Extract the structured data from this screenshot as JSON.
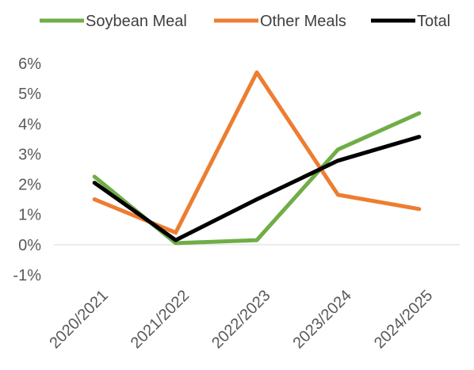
{
  "chart_data": {
    "type": "line",
    "categories": [
      "2020/2021",
      "2021/2022",
      "2022/2023",
      "2023/2024",
      "2024/2025"
    ],
    "series": [
      {
        "name": "Soybean Meal",
        "color": "#70ad47",
        "values": [
          2.25,
          0.05,
          0.15,
          3.15,
          4.35
        ]
      },
      {
        "name": "Other Meals",
        "color": "#ed7d31",
        "values": [
          1.5,
          0.4,
          5.7,
          1.65,
          1.18
        ]
      },
      {
        "name": "Total",
        "color": "#000000",
        "values": [
          2.05,
          0.15,
          1.5,
          2.78,
          3.57
        ]
      }
    ],
    "y_ticks": [
      "6%",
      "5%",
      "4%",
      "3%",
      "2%",
      "1%",
      "0%",
      "-1%"
    ],
    "ylim": [
      -1,
      6
    ],
    "y_unit": "percent",
    "legend_position": "top",
    "grid": false
  }
}
